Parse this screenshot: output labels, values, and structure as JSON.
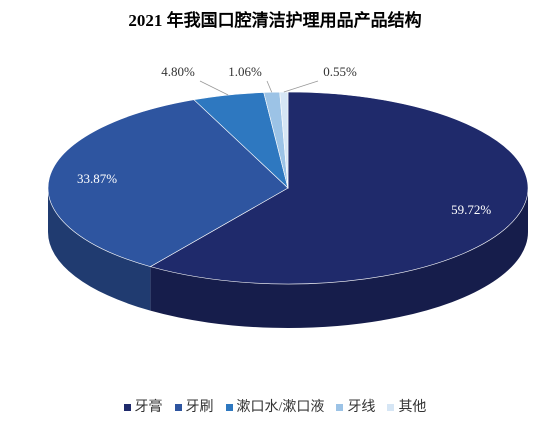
{
  "chart_data": {
    "type": "pie3d",
    "title": "2021 年我国口腔清洁护理用品产品结构",
    "categories": [
      "牙膏",
      "牙刷",
      "漱口水/漱口液",
      "牙线",
      "其他"
    ],
    "values": [
      59.72,
      33.87,
      4.8,
      1.06,
      0.55
    ],
    "value_labels": [
      "59.72%",
      "33.87%",
      "4.80%",
      "1.06%",
      "0.55%"
    ],
    "colors": [
      "#1f2a6b",
      "#2e55a0",
      "#2e78c0",
      "#9cc3e6",
      "#d6e6f5"
    ],
    "legend": "bottom"
  }
}
